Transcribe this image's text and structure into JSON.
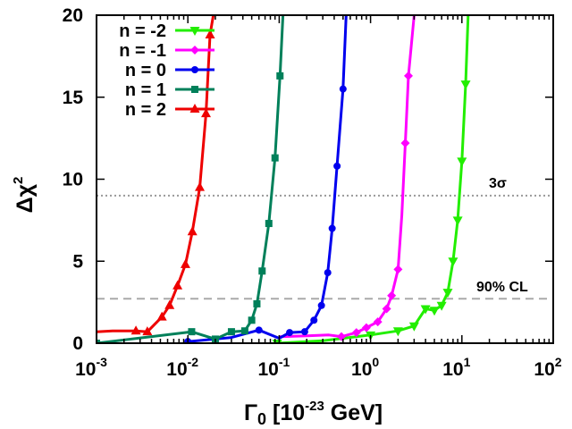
{
  "chart_data": {
    "type": "line",
    "xlabel": {
      "main": "Γ",
      "sub": "0",
      "unit_pre": " [10",
      "unit_exp": "-23",
      "unit_post": " GeV]"
    },
    "ylabel": {
      "main": "Δχ",
      "sup": "2"
    },
    "xscale": "log",
    "xlim": [
      0.001,
      100
    ],
    "ylim": [
      0,
      20
    ],
    "xticks": [
      {
        "base": "10",
        "exp": "-3",
        "value": 0.001
      },
      {
        "base": "10",
        "exp": "-2",
        "value": 0.01
      },
      {
        "base": "10",
        "exp": "-1",
        "value": 0.1
      },
      {
        "base": "10",
        "exp": "0",
        "value": 1
      },
      {
        "base": "10",
        "exp": "1",
        "value": 10
      },
      {
        "base": "10",
        "exp": "2",
        "value": 100
      }
    ],
    "yticks": [
      {
        "label": "0",
        "value": 0
      },
      {
        "label": "5",
        "value": 5
      },
      {
        "label": "10",
        "value": 10
      },
      {
        "label": "15",
        "value": 15
      },
      {
        "label": "20",
        "value": 20
      }
    ],
    "legend_position": "top-left",
    "reference_lines": [
      {
        "label": "3σ",
        "y": 9.0,
        "style": "dotted",
        "color": "#999999"
      },
      {
        "label": "90% CL",
        "y": 2.71,
        "style": "dashed",
        "color": "#aaaaaa"
      }
    ],
    "series": [
      {
        "name": "n = -2",
        "color": "#22ee00",
        "marker": "triangle-down",
        "points": [
          [
            0.095,
            0.0
          ],
          [
            1.0,
            0.5
          ],
          [
            2.0,
            0.75
          ],
          [
            3.0,
            1.05
          ],
          [
            4.0,
            2.1
          ],
          [
            5.0,
            2.0
          ],
          [
            6.0,
            2.3
          ],
          [
            7.0,
            3.1
          ],
          [
            8.0,
            5.0
          ],
          [
            9.0,
            7.5
          ],
          [
            10.0,
            11.1
          ],
          [
            11.0,
            15.8
          ],
          [
            11.7,
            20.0
          ]
        ],
        "curve": [
          [
            0.095,
            0.0
          ],
          [
            0.3,
            0.15
          ],
          [
            1.0,
            0.5
          ],
          [
            2.0,
            0.75
          ],
          [
            3.0,
            1.05
          ],
          [
            4.0,
            2.1
          ],
          [
            5.0,
            2.0
          ],
          [
            6.0,
            2.3
          ],
          [
            7.0,
            3.1
          ],
          [
            8.0,
            5.0
          ],
          [
            9.0,
            7.5
          ],
          [
            10.0,
            11.1
          ],
          [
            11.0,
            15.8
          ],
          [
            11.7,
            20.0
          ]
        ]
      },
      {
        "name": "n = -1",
        "color": "#ff00ff",
        "marker": "diamond",
        "points": [
          [
            0.48,
            0.4
          ],
          [
            0.7,
            0.65
          ],
          [
            0.9,
            0.95
          ],
          [
            1.2,
            1.3
          ],
          [
            1.5,
            2.1
          ],
          [
            1.7,
            2.9
          ],
          [
            2.0,
            4.5
          ],
          [
            2.4,
            12.2
          ],
          [
            2.6,
            16.3
          ],
          [
            3.0,
            20.0
          ]
        ],
        "curve": [
          [
            0.1,
            0.4
          ],
          [
            0.2,
            0.45
          ],
          [
            0.35,
            0.5
          ],
          [
            0.48,
            0.4
          ],
          [
            0.7,
            0.65
          ],
          [
            0.9,
            0.95
          ],
          [
            1.2,
            1.3
          ],
          [
            1.5,
            2.1
          ],
          [
            1.7,
            2.9
          ],
          [
            2.0,
            4.5
          ],
          [
            2.2,
            7.8
          ],
          [
            2.4,
            12.2
          ],
          [
            2.6,
            16.3
          ],
          [
            3.0,
            20.0
          ]
        ]
      },
      {
        "name": "n = 0",
        "color": "#0000ee",
        "marker": "circle",
        "points": [
          [
            0.01,
            0.1
          ],
          [
            0.06,
            0.8
          ],
          [
            0.13,
            0.65
          ],
          [
            0.19,
            0.7
          ],
          [
            0.24,
            1.4
          ],
          [
            0.29,
            2.3
          ],
          [
            0.34,
            4.3
          ],
          [
            0.38,
            7.0
          ],
          [
            0.43,
            10.8
          ],
          [
            0.5,
            15.5
          ],
          [
            0.54,
            20.0
          ]
        ],
        "curve": [
          [
            0.01,
            0.1
          ],
          [
            0.03,
            0.35
          ],
          [
            0.06,
            0.8
          ],
          [
            0.1,
            0.3
          ],
          [
            0.13,
            0.65
          ],
          [
            0.19,
            0.7
          ],
          [
            0.24,
            1.4
          ],
          [
            0.29,
            2.3
          ],
          [
            0.34,
            4.3
          ],
          [
            0.38,
            7.0
          ],
          [
            0.43,
            10.8
          ],
          [
            0.5,
            15.5
          ],
          [
            0.54,
            20.0
          ]
        ]
      },
      {
        "name": "n = 1",
        "color": "#00805a",
        "marker": "square",
        "points": [
          [
            0.001,
            0.0
          ],
          [
            0.011,
            0.7
          ],
          [
            0.02,
            0.25
          ],
          [
            0.03,
            0.7
          ],
          [
            0.042,
            0.75
          ],
          [
            0.05,
            1.4
          ],
          [
            0.057,
            2.4
          ],
          [
            0.065,
            4.4
          ],
          [
            0.077,
            7.3
          ],
          [
            0.09,
            11.3
          ],
          [
            0.102,
            16.3
          ],
          [
            0.11,
            20.0
          ]
        ],
        "curve": [
          [
            0.001,
            0.0
          ],
          [
            0.011,
            0.7
          ],
          [
            0.02,
            0.25
          ],
          [
            0.03,
            0.7
          ],
          [
            0.042,
            0.75
          ],
          [
            0.05,
            1.4
          ],
          [
            0.057,
            2.4
          ],
          [
            0.065,
            4.4
          ],
          [
            0.077,
            7.3
          ],
          [
            0.09,
            11.3
          ],
          [
            0.102,
            16.3
          ],
          [
            0.11,
            20.0
          ]
        ]
      },
      {
        "name": "n = 2",
        "color": "#ee0000",
        "marker": "triangle-up",
        "points": [
          [
            0.0027,
            0.75
          ],
          [
            0.0036,
            0.7
          ],
          [
            0.0052,
            1.6
          ],
          [
            0.0063,
            2.3
          ],
          [
            0.0077,
            3.5
          ],
          [
            0.0094,
            4.8
          ],
          [
            0.0112,
            6.8
          ],
          [
            0.0135,
            9.5
          ],
          [
            0.0158,
            14.0
          ],
          [
            0.0175,
            18.8
          ],
          [
            0.019,
            20.0
          ]
        ],
        "curve": [
          [
            0.001,
            0.7
          ],
          [
            0.0015,
            0.75
          ],
          [
            0.0027,
            0.75
          ],
          [
            0.0036,
            0.7
          ],
          [
            0.0052,
            1.6
          ],
          [
            0.0063,
            2.3
          ],
          [
            0.0077,
            3.5
          ],
          [
            0.0094,
            4.8
          ],
          [
            0.0112,
            6.8
          ],
          [
            0.0135,
            9.5
          ],
          [
            0.0158,
            14.0
          ],
          [
            0.0175,
            18.8
          ],
          [
            0.019,
            20.0
          ]
        ]
      }
    ]
  }
}
